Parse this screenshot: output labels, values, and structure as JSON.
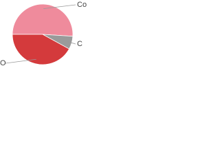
{
  "chart_data": {
    "type": "pie",
    "categories": [
      "Co",
      "C",
      "O"
    ],
    "values": [
      51,
      7,
      42
    ],
    "colors": [
      "#ef8b9c",
      "#9a9a9a",
      "#d43a3c"
    ]
  }
}
